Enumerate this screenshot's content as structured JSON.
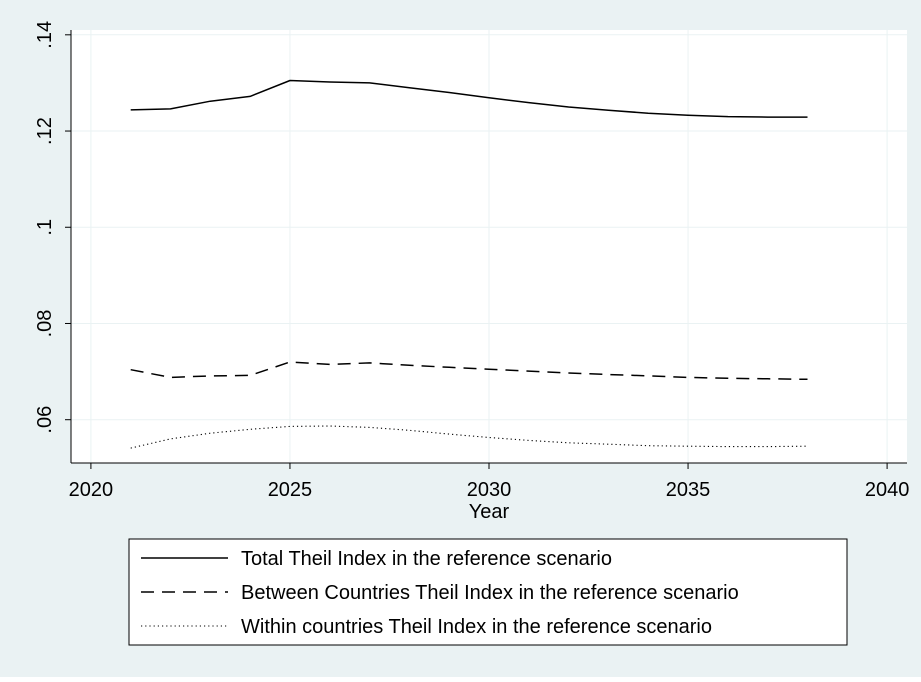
{
  "chart_data": {
    "type": "line",
    "title": "",
    "xlabel": "Year",
    "ylabel": "",
    "xlim": [
      2019.5,
      2040.5
    ],
    "ylim": [
      0.051,
      0.141
    ],
    "x_ticks": [
      2020,
      2025,
      2030,
      2035,
      2040
    ],
    "x_tick_labels": [
      "2020",
      "2025",
      "2030",
      "2035",
      "2040"
    ],
    "y_ticks": [
      0.06,
      0.08,
      0.1,
      0.12,
      0.14
    ],
    "y_tick_labels": [
      ".06",
      ".08",
      ".1",
      ".12",
      ".14"
    ],
    "grid": true,
    "legend_position": "bottom",
    "x": [
      2021,
      2022,
      2023,
      2024,
      2025,
      2026,
      2027,
      2028,
      2029,
      2030,
      2031,
      2032,
      2033,
      2034,
      2035,
      2036,
      2037,
      2038
    ],
    "series": [
      {
        "name": "Total Theil Index in the reference scenario",
        "style": "solid",
        "values": [
          0.1244,
          0.1246,
          0.1262,
          0.1272,
          0.1305,
          0.1302,
          0.13,
          0.129,
          0.128,
          0.1269,
          0.1259,
          0.125,
          0.1243,
          0.1237,
          0.1233,
          0.123,
          0.1229,
          0.1229
        ]
      },
      {
        "name": "Between Countries Theil Index in the reference scenario",
        "style": "dashed",
        "values": [
          0.0704,
          0.0688,
          0.0691,
          0.0692,
          0.072,
          0.0715,
          0.0718,
          0.0713,
          0.0709,
          0.0705,
          0.0701,
          0.0697,
          0.0694,
          0.0691,
          0.0688,
          0.0686,
          0.0685,
          0.0684
        ]
      },
      {
        "name": "Within countries Theil Index in the reference scenario",
        "style": "dotted",
        "values": [
          0.0541,
          0.056,
          0.0572,
          0.058,
          0.0586,
          0.0587,
          0.0584,
          0.0578,
          0.057,
          0.0563,
          0.0557,
          0.0552,
          0.0549,
          0.0546,
          0.0545,
          0.0544,
          0.0544,
          0.0545
        ]
      }
    ]
  }
}
